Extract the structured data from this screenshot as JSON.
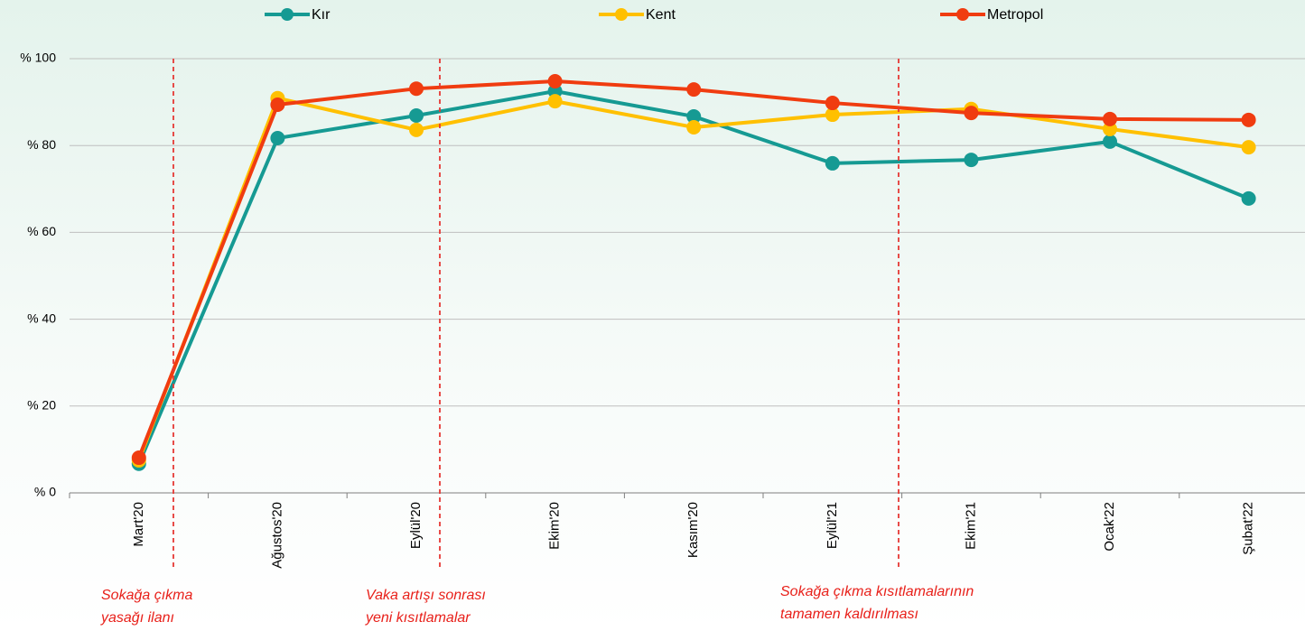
{
  "chart_data": {
    "type": "line",
    "categories": [
      "Mart'20",
      "Ağustos'20",
      "Eylül'20",
      "Ekim'20",
      "Kasım'20",
      "Eylül'21",
      "Ekim'21",
      "Ocak'22",
      "Şubat'22"
    ],
    "series": [
      {
        "name": "Kır",
        "color": "#169a93",
        "values": [
          6.7,
          81.7,
          86.9,
          92.5,
          86.7,
          75.9,
          76.7,
          80.9,
          67.8
        ]
      },
      {
        "name": "Kent",
        "color": "#ffc000",
        "values": [
          7.5,
          90.9,
          83.6,
          90.2,
          84.2,
          87.1,
          88.4,
          83.8,
          79.6
        ]
      },
      {
        "name": "Metropol",
        "color": "#f03c10",
        "values": [
          8.1,
          89.4,
          93.1,
          94.8,
          92.9,
          89.8,
          87.5,
          86.1,
          85.9
        ]
      }
    ],
    "ylim": [
      0,
      100
    ],
    "yticks": [
      {
        "value": 0,
        "label": "% 0"
      },
      {
        "value": 20,
        "label": "% 20"
      },
      {
        "value": 40,
        "label": "% 40"
      },
      {
        "value": 60,
        "label": "% 60"
      },
      {
        "value": 80,
        "label": "% 80"
      },
      {
        "value": 100,
        "label": "% 100"
      }
    ],
    "grid": true,
    "legend": "top",
    "annotations": [
      [
        "Sokağa çıkma",
        "yasağı ilanı"
      ],
      [
        "Vaka artışı sonrası",
        "yeni kısıtlamalar"
      ],
      [
        "Sokağa çıkma kısıtlamalarının",
        "tamamen kaldırılması"
      ]
    ]
  }
}
